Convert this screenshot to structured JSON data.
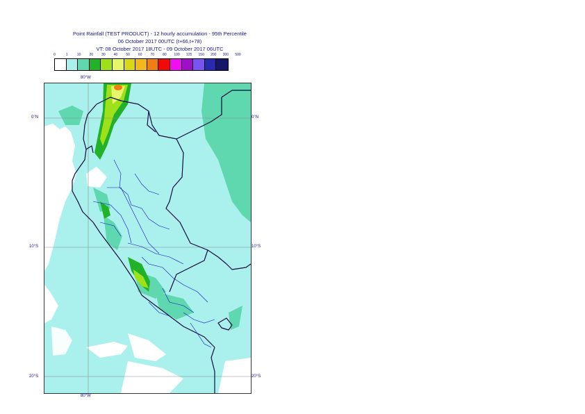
{
  "title_line1": "Point Rainfall (TEST PRODUCT) - 12 hourly accumulation - 95th Percentile",
  "title_line2": "06 October 2017 00UTC (t+66,t+78)",
  "title_line3": "VT: 08 October 2017 18UTC - 09 October 2017 06UTC",
  "legend": {
    "labels": [
      "0",
      "1",
      "10",
      "20",
      "30",
      "40",
      "50",
      "60",
      "70",
      "80",
      "100",
      "125",
      "150",
      "200",
      "300",
      "500"
    ],
    "colors": [
      "#ffffff",
      "#aaf0ec",
      "#5fd8b0",
      "#22b22a",
      "#9ee01a",
      "#e6f56a",
      "#d8d81a",
      "#f3b81a",
      "#f07e12",
      "#f20a0a",
      "#ee10ee",
      "#9e10c8",
      "#7a54f0",
      "#2a2ab0",
      "#16166a"
    ]
  },
  "axis_labels": {
    "top_lon": "80°W",
    "bottom_lon": "80°W",
    "lat_0_left": "0°N",
    "lat_0_right": "0°N",
    "lat_10_left": "10°S",
    "lat_10_right": "10°S",
    "lat_20_left": "20°S",
    "lat_20_right": "20°S"
  },
  "colors": {
    "ocean_field": "#aaf0ec",
    "land_field": "#aaf0ec",
    "field_10": "#5fd8b0",
    "field_20": "#22b22a",
    "field_30": "#9ee01a",
    "field_40": "#e6f56a",
    "field_70": "#f07e12",
    "coast": "#0a0a3c",
    "admin": "#1010c0",
    "grid": "#8a8a8a",
    "text": "#14148a"
  }
}
